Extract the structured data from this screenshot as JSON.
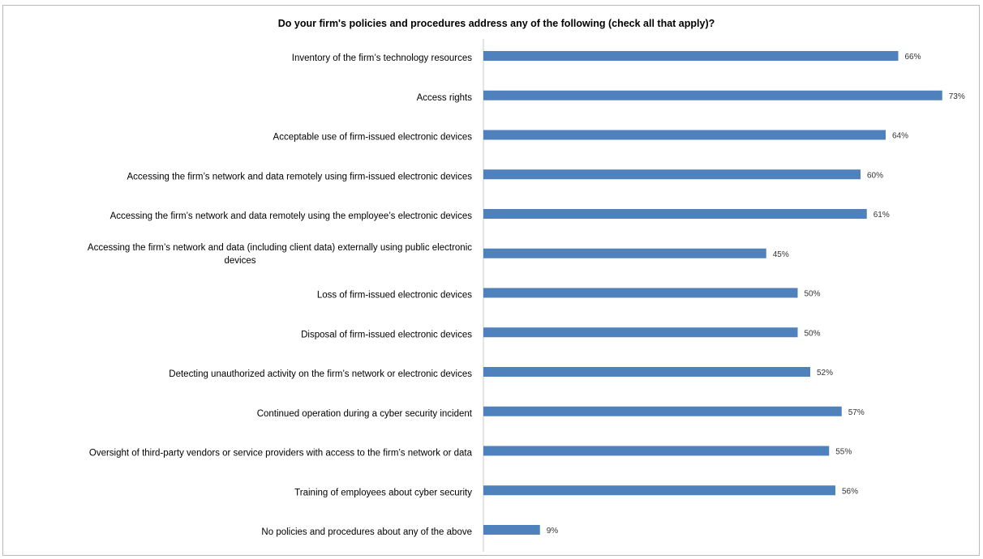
{
  "chart_data": {
    "type": "bar",
    "orientation": "horizontal",
    "title": "Do your firm's policies and procedures address any of the following (check all that apply)?",
    "xlabel": "",
    "ylabel": "",
    "xlim": [
      0,
      75
    ],
    "grid": false,
    "legend": "none",
    "bar_color": "#4f81bd",
    "value_suffix": "%",
    "categories": [
      [
        "Inventory of the firm’s technology resources"
      ],
      [
        "Access rights"
      ],
      [
        "Acceptable use of firm-issued electronic devices"
      ],
      [
        "Accessing the firm’s network and data remotely using firm-issued electronic devices"
      ],
      [
        "Accessing the firm’s network and data remotely using the employee’s electronic devices"
      ],
      [
        "Accessing the firm’s network and data (including client data) externally using public electronic",
        "devices"
      ],
      [
        "Loss of firm-issued electronic devices"
      ],
      [
        "Disposal of firm-issued electronic devices"
      ],
      [
        "Detecting unauthorized activity on the firm’s network or electronic devices"
      ],
      [
        "Continued operation during a cyber security incident"
      ],
      [
        "Oversight of third-party vendors or service providers with access to the firm’s network or data"
      ],
      [
        "Training of employees about cyber security"
      ],
      [
        "No policies and procedures about any of the above"
      ]
    ],
    "values": [
      66,
      73,
      64,
      60,
      61,
      45,
      50,
      50,
      52,
      57,
      55,
      56,
      9
    ],
    "data_labels": [
      "66%",
      "73%",
      "64%",
      "60%",
      "61%",
      "45%",
      "50%",
      "50%",
      "52%",
      "57%",
      "55%",
      "56%",
      "9%"
    ]
  }
}
